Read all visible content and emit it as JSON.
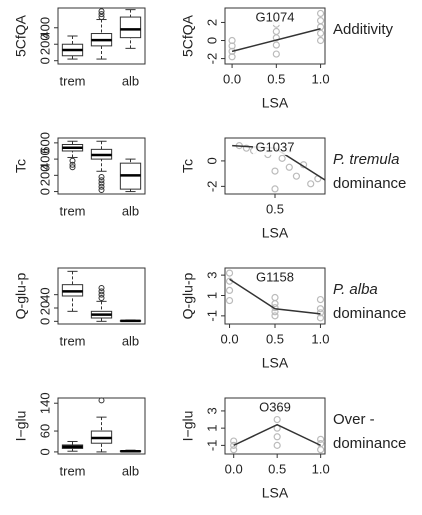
{
  "chart_data": [
    {
      "type": "box",
      "ylabel": "5CfQA",
      "categories": [
        "trem",
        null,
        "alb"
      ],
      "ylim": [
        -40,
        640
      ],
      "yticks": [
        0,
        200,
        400
      ],
      "color": "#ffffff",
      "boxes": [
        {
          "whislo": 20,
          "q1": 60,
          "med": 130,
          "q3": 200,
          "whishi": 300,
          "fliers": []
        },
        {
          "whislo": 20,
          "q1": 180,
          "med": 250,
          "q3": 330,
          "whishi": 500,
          "fliers": [
            530,
            565,
            600
          ]
        },
        {
          "whislo": 150,
          "q1": 280,
          "med": 380,
          "q3": 530,
          "whishi": 620,
          "fliers": []
        }
      ]
    },
    {
      "type": "scatter",
      "title": "G1074",
      "ylabel": "5CfQA",
      "xlabel": "LSA",
      "xlim": [
        -0.08,
        1.05
      ],
      "ylim": [
        -2.6,
        3.6
      ],
      "xticks": [
        {
          "value": 0,
          "label": "0.0"
        },
        0.5,
        {
          "value": 1,
          "label": "1.0"
        }
      ],
      "yticks": [
        -2,
        0,
        2
      ],
      "point_color": "#bbbbbb",
      "line_color": "#333333",
      "x": [
        0,
        0,
        0,
        0,
        0.5,
        0.5,
        0.5,
        0.5,
        0.5,
        0.5,
        1,
        1,
        1,
        1,
        1
      ],
      "y": [
        -1.8,
        -1.2,
        -0.6,
        0,
        -1.5,
        -0.5,
        0.3,
        1,
        1.8,
        2.8,
        0,
        0.8,
        1.5,
        2.2,
        3
      ],
      "line_x": [
        0,
        1
      ],
      "line_y": [
        -1.2,
        1.3
      ],
      "annotation": [
        "Additivity"
      ],
      "annotation_italic": [
        false
      ]
    },
    {
      "type": "box",
      "ylabel": "Tc",
      "categories": [
        "trem",
        null,
        "alb"
      ],
      "ylim": [
        -30,
        660
      ],
      "yticks": [
        0,
        200,
        400,
        600
      ],
      "color": "#ffffff",
      "boxes": [
        {
          "whislo": 420,
          "q1": 500,
          "med": 540,
          "q3": 580,
          "whishi": 620,
          "fliers": [
            300,
            330,
            380
          ]
        },
        {
          "whislo": 250,
          "q1": 400,
          "med": 450,
          "q3": 520,
          "whishi": 620,
          "fliers": [
            20,
            60,
            100,
            140,
            180
          ]
        },
        {
          "whislo": 0,
          "q1": 30,
          "med": 200,
          "q3": 350,
          "whishi": 400,
          "fliers": []
        }
      ]
    },
    {
      "type": "scatter",
      "title": "G1037",
      "ylabel": "Tc",
      "xlabel": "LSA",
      "xlim": [
        0.15,
        0.85
      ],
      "ylim": [
        -2.6,
        1.8
      ],
      "xticks": [
        0.5
      ],
      "yticks": [
        -2,
        0
      ],
      "point_color": "#bbbbbb",
      "line_color": "#333333",
      "x": [
        0.25,
        0.3,
        0.35,
        0.4,
        0.45,
        0.5,
        0.5,
        0.55,
        0.6,
        0.65,
        0.7,
        0.75,
        0.8,
        0.5,
        0.6
      ],
      "y": [
        1.2,
        1.0,
        0.8,
        1.1,
        0.5,
        1.2,
        -0.8,
        0.2,
        -0.5,
        -1.2,
        -0.3,
        -1.8,
        -1.4,
        -2.2,
        0.9
      ],
      "line_x": [
        0.2,
        0.5,
        0.85
      ],
      "line_y": [
        1.2,
        1.0,
        -1.5
      ],
      "annotation": [
        "P. tremula",
        "dominance"
      ],
      "annotation_italic": [
        true,
        false
      ]
    },
    {
      "type": "box",
      "ylabel": "Q-glu-p",
      "categories": [
        "trem",
        null,
        "alb"
      ],
      "ylim": [
        -4,
        80
      ],
      "yticks": [
        0,
        20,
        40
      ],
      "color": "#ffffff",
      "boxes": [
        {
          "whislo": 15,
          "q1": 38,
          "med": 45,
          "q3": 55,
          "whishi": 75,
          "fliers": []
        },
        {
          "whislo": 0,
          "q1": 5,
          "med": 10,
          "q3": 15,
          "whishi": 30,
          "fliers": [
            35,
            40,
            45,
            50
          ]
        },
        {
          "whislo": 0,
          "q1": 0.3,
          "med": 0.6,
          "q3": 1,
          "whishi": 2,
          "fliers": []
        }
      ]
    },
    {
      "type": "scatter",
      "title": "G1158",
      "ylabel": "Q-glu-p",
      "xlabel": "LSA",
      "xlim": [
        -0.05,
        1.05
      ],
      "ylim": [
        -1.8,
        3.7
      ],
      "xticks": [
        {
          "value": 0,
          "label": "0.0"
        },
        0.5,
        {
          "value": 1,
          "label": "1.0"
        }
      ],
      "yticks": [
        -1,
        1,
        3
      ],
      "point_color": "#bbbbbb",
      "line_color": "#333333",
      "x": [
        0,
        0,
        0,
        0,
        0.5,
        0.5,
        0.5,
        0.5,
        0.5,
        1,
        1,
        1,
        1
      ],
      "y": [
        3.2,
        2.4,
        1.5,
        0.5,
        0.2,
        -0.2,
        -0.6,
        -1,
        0.8,
        -1.2,
        -0.7,
        -0.3,
        0.6
      ],
      "line_x": [
        0,
        0.5,
        1
      ],
      "line_y": [
        2.6,
        -0.3,
        -0.8
      ],
      "annotation": [
        "P. alba",
        "dominance"
      ],
      "annotation_italic": [
        true,
        false
      ]
    },
    {
      "type": "box",
      "ylabel": "I−glu",
      "categories": [
        "trem",
        null,
        "alb"
      ],
      "ylim": [
        -6,
        155
      ],
      "yticks": [
        0,
        60,
        140
      ],
      "color": "#ffffff",
      "boxes": [
        {
          "whislo": 2,
          "q1": 10,
          "med": 15,
          "q3": 20,
          "whishi": 30,
          "fliers": []
        },
        {
          "whislo": 0,
          "q1": 25,
          "med": 40,
          "q3": 60,
          "whishi": 100,
          "fliers": [
            148
          ]
        },
        {
          "whislo": 0,
          "q1": 1,
          "med": 2,
          "q3": 3,
          "whishi": 5,
          "fliers": []
        }
      ]
    },
    {
      "type": "scatter",
      "title": "O369",
      "ylabel": "I−glu",
      "xlabel": "LSA",
      "xlim": [
        -0.1,
        1.05
      ],
      "ylim": [
        -2,
        4.5
      ],
      "xticks": [
        {
          "value": 0,
          "label": "0.0"
        },
        0.5,
        {
          "value": 1,
          "label": "1.0"
        }
      ],
      "yticks": [
        -1,
        1,
        3
      ],
      "point_color": "#bbbbbb",
      "line_color": "#333333",
      "x": [
        0,
        0,
        0,
        0.5,
        0.5,
        0.5,
        0.5,
        0.5,
        0.5,
        1,
        1,
        1
      ],
      "y": [
        -1.5,
        -1,
        -0.5,
        -1,
        0,
        1,
        2,
        3,
        3.8,
        -1.5,
        -0.8,
        -0.3
      ],
      "line_x": [
        0,
        0.5,
        1
      ],
      "line_y": [
        -1,
        1.4,
        -1
      ],
      "annotation": [
        "Over -",
        "dominance"
      ],
      "annotation_italic": [
        false,
        false
      ]
    }
  ]
}
